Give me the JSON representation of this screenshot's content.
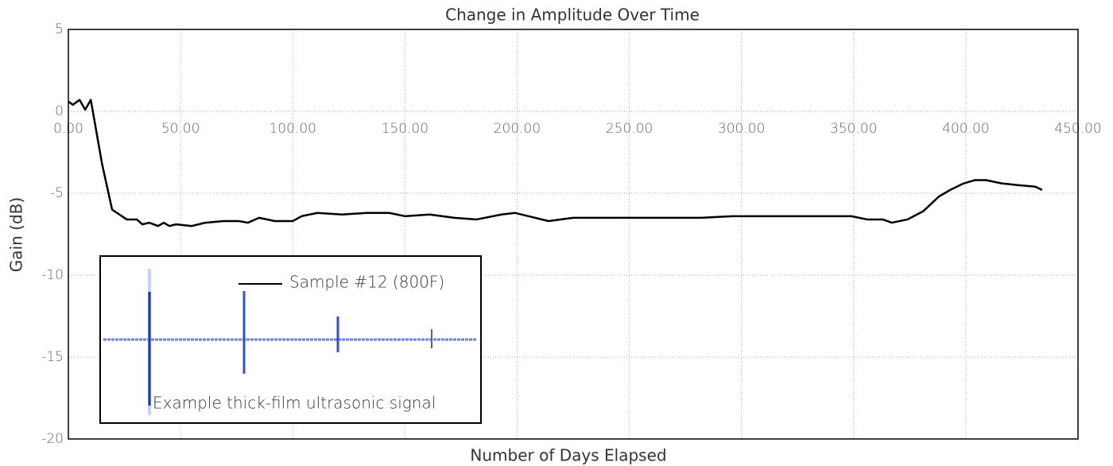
{
  "chart_data": {
    "type": "line",
    "title": "Change in Amplitude Over Time",
    "x_label": "Number of Days Elapsed",
    "y_label": "Gain (dB)",
    "annotation": "Example thick-film ultrasonic signal",
    "xlim": [
      0,
      450
    ],
    "ylim": [
      -20,
      5
    ],
    "xticks": [
      {
        "value": 0,
        "label": "0.00"
      },
      {
        "value": 50,
        "label": "50.00"
      },
      {
        "value": 100,
        "label": "100.00"
      },
      {
        "value": 150,
        "label": "150.00"
      },
      {
        "value": 200,
        "label": "200.00"
      },
      {
        "value": 250,
        "label": "250.00"
      },
      {
        "value": 300,
        "label": "300.00"
      },
      {
        "value": 350,
        "label": "350.00"
      },
      {
        "value": 400,
        "label": "400.00"
      },
      {
        "value": 450,
        "label": "450.00"
      }
    ],
    "yticks": [
      5,
      0,
      -5,
      -10,
      -15,
      -20
    ],
    "grid": true,
    "x": [
      0,
      2,
      5,
      7.5,
      10,
      15,
      19.5,
      26,
      30.5,
      33,
      36,
      40,
      42.5,
      45,
      48,
      55,
      61,
      69,
      76,
      80,
      85,
      92,
      100,
      104,
      111,
      122,
      133,
      143,
      150,
      161,
      172,
      182,
      193,
      199,
      205,
      214,
      225,
      253,
      282,
      296,
      324,
      349,
      356,
      363,
      367,
      374,
      381,
      388,
      393,
      399,
      404,
      409,
      416,
      423,
      431,
      434
    ],
    "series": [
      {
        "name": "Sample #12 (800F)",
        "color": "#000000",
        "values": [
          0.6,
          0.4,
          0.7,
          0.1,
          0.7,
          -3.2,
          -6.0,
          -6.6,
          -6.6,
          -6.9,
          -6.8,
          -7.0,
          -6.8,
          -7.0,
          -6.9,
          -7.0,
          -6.8,
          -6.7,
          -6.7,
          -6.8,
          -6.5,
          -6.7,
          -6.7,
          -6.4,
          -6.2,
          -6.3,
          -6.2,
          -6.2,
          -6.4,
          -6.3,
          -6.5,
          -6.6,
          -6.3,
          -6.2,
          -6.4,
          -6.7,
          -6.5,
          -6.5,
          -6.5,
          -6.4,
          -6.4,
          -6.4,
          -6.6,
          -6.6,
          -6.8,
          -6.6,
          -6.1,
          -5.2,
          -4.8,
          -4.4,
          -4.2,
          -4.2,
          -4.4,
          -4.5,
          -4.6,
          -4.8
        ]
      }
    ]
  }
}
